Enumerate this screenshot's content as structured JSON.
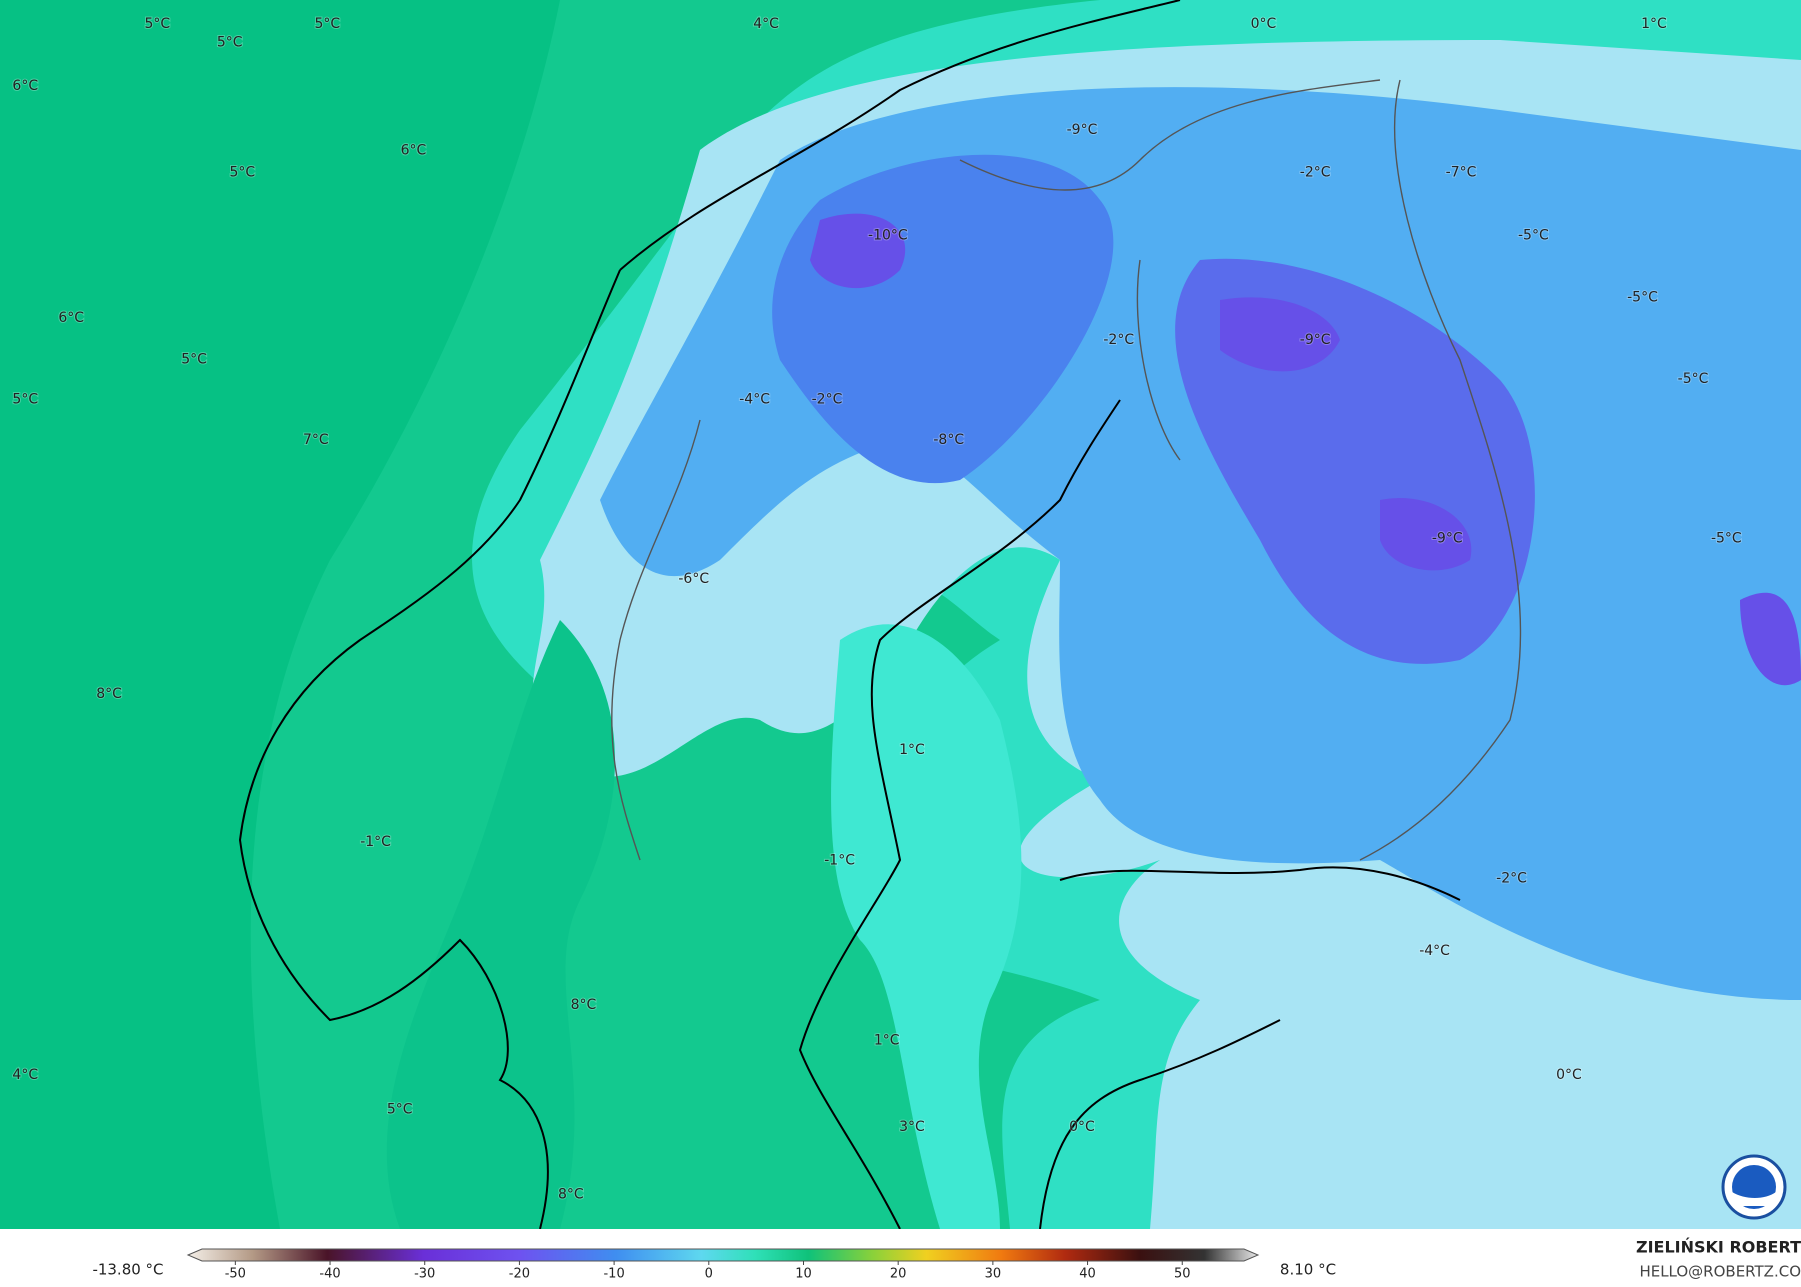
{
  "map": {
    "labels": [
      "5°C",
      "5°C",
      "5°C",
      "4°C",
      "0°C",
      "1°C",
      "6°C",
      "6°C",
      "5°C",
      "-9°C",
      "-2°C",
      "-7°C",
      "-10°C",
      "-5°C",
      "6°C",
      "-5°C",
      "-2°C",
      "-9°C",
      "5°C",
      "-5°C",
      "5°C",
      "-4°C",
      "-2°C",
      "7°C",
      "-8°C",
      "-9°C",
      "-5°C",
      "-6°C",
      "8°C",
      "1°C",
      "-1°C",
      "-1°C",
      "-2°C",
      "-4°C",
      "8°C",
      "1°C",
      "4°C",
      "0°C",
      "5°C",
      "3°C",
      "0°C",
      "8°C"
    ]
  },
  "colorbar": {
    "min_label": "-13.80 °C",
    "max_label": "8.10 °C",
    "range": [
      -55,
      58
    ],
    "ticks": [
      -50,
      -40,
      -30,
      -20,
      -10,
      0,
      10,
      20,
      30,
      40,
      50
    ]
  },
  "credit": {
    "author": "ZIELIŃSKI ROBERT",
    "contact": "HELLO@ROBERTZ.CO"
  }
}
